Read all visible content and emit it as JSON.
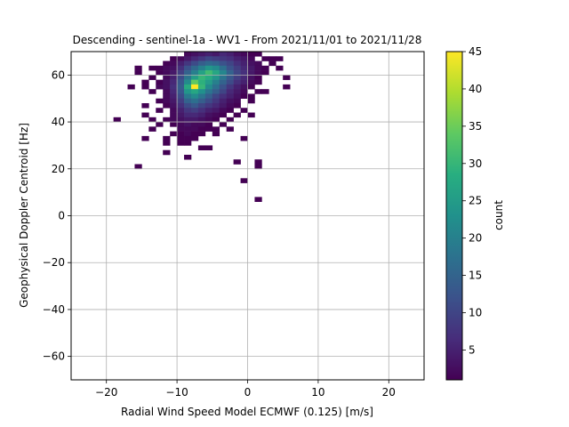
{
  "chart_data": {
    "type": "heatmap",
    "title": "Descending - sentinel-1a - WV1 - From 2021/11/01 to 2021/11/28",
    "xlabel": "Radial Wind Speed Model ECMWF (0.125) [m/s]",
    "ylabel": "Geophysical Doppler Centroid [Hz]",
    "xlim": [
      -25,
      25
    ],
    "ylim": [
      -70,
      70
    ],
    "xticks": [
      -20,
      -10,
      0,
      10,
      20
    ],
    "yticks": [
      -60,
      -40,
      -20,
      0,
      20,
      40,
      60
    ],
    "grid": true,
    "bin_size": [
      1,
      2
    ],
    "colorbar": {
      "label": "count",
      "min": 1,
      "max": 45,
      "ticks": [
        5,
        10,
        15,
        20,
        25,
        30,
        35,
        40,
        45
      ],
      "colormap": "viridis"
    },
    "bins": [
      {
        "x": -8.5,
        "y": 69,
        "count": 2
      },
      {
        "x": -7.5,
        "y": 69,
        "count": 3
      },
      {
        "x": -6.5,
        "y": 69,
        "count": 4
      },
      {
        "x": -5.5,
        "y": 69,
        "count": 5
      },
      {
        "x": -4.5,
        "y": 69,
        "count": 4
      },
      {
        "x": -3.5,
        "y": 69,
        "count": 6
      },
      {
        "x": -2.5,
        "y": 69,
        "count": 5
      },
      {
        "x": -1.5,
        "y": 69,
        "count": 3
      },
      {
        "x": -0.5,
        "y": 69,
        "count": 2
      },
      {
        "x": 0.5,
        "y": 69,
        "count": 1
      },
      {
        "x": 1.5,
        "y": 69,
        "count": 1
      },
      {
        "x": -10.5,
        "y": 67,
        "count": 1
      },
      {
        "x": -9.5,
        "y": 67,
        "count": 2
      },
      {
        "x": -8.5,
        "y": 67,
        "count": 4
      },
      {
        "x": -7.5,
        "y": 67,
        "count": 6
      },
      {
        "x": -6.5,
        "y": 67,
        "count": 8
      },
      {
        "x": -5.5,
        "y": 67,
        "count": 10
      },
      {
        "x": -4.5,
        "y": 67,
        "count": 9
      },
      {
        "x": -3.5,
        "y": 67,
        "count": 8
      },
      {
        "x": -2.5,
        "y": 67,
        "count": 7
      },
      {
        "x": -1.5,
        "y": 67,
        "count": 5
      },
      {
        "x": -0.5,
        "y": 67,
        "count": 4
      },
      {
        "x": 0.5,
        "y": 67,
        "count": 2
      },
      {
        "x": 2.5,
        "y": 67,
        "count": 1
      },
      {
        "x": 3.5,
        "y": 67,
        "count": 1
      },
      {
        "x": 4.5,
        "y": 67,
        "count": 1
      },
      {
        "x": -11.5,
        "y": 65,
        "count": 1
      },
      {
        "x": -10.5,
        "y": 65,
        "count": 2
      },
      {
        "x": -9.5,
        "y": 65,
        "count": 5
      },
      {
        "x": -8.5,
        "y": 65,
        "count": 8
      },
      {
        "x": -7.5,
        "y": 65,
        "count": 11
      },
      {
        "x": -6.5,
        "y": 65,
        "count": 14
      },
      {
        "x": -5.5,
        "y": 65,
        "count": 16
      },
      {
        "x": -4.5,
        "y": 65,
        "count": 15
      },
      {
        "x": -3.5,
        "y": 65,
        "count": 12
      },
      {
        "x": -2.5,
        "y": 65,
        "count": 10
      },
      {
        "x": -1.5,
        "y": 65,
        "count": 7
      },
      {
        "x": -0.5,
        "y": 65,
        "count": 5
      },
      {
        "x": 0.5,
        "y": 65,
        "count": 3
      },
      {
        "x": 1.5,
        "y": 65,
        "count": 2
      },
      {
        "x": 3.5,
        "y": 65,
        "count": 1
      },
      {
        "x": -15.5,
        "y": 63,
        "count": 1
      },
      {
        "x": -13.5,
        "y": 63,
        "count": 1
      },
      {
        "x": -12.5,
        "y": 63,
        "count": 1
      },
      {
        "x": -11.5,
        "y": 63,
        "count": 2
      },
      {
        "x": -10.5,
        "y": 63,
        "count": 3
      },
      {
        "x": -9.5,
        "y": 63,
        "count": 7
      },
      {
        "x": -8.5,
        "y": 63,
        "count": 12
      },
      {
        "x": -7.5,
        "y": 63,
        "count": 16
      },
      {
        "x": -6.5,
        "y": 63,
        "count": 20
      },
      {
        "x": -5.5,
        "y": 63,
        "count": 24
      },
      {
        "x": -4.5,
        "y": 63,
        "count": 22
      },
      {
        "x": -3.5,
        "y": 63,
        "count": 17
      },
      {
        "x": -2.5,
        "y": 63,
        "count": 12
      },
      {
        "x": -1.5,
        "y": 63,
        "count": 9
      },
      {
        "x": -0.5,
        "y": 63,
        "count": 6
      },
      {
        "x": 0.5,
        "y": 63,
        "count": 4
      },
      {
        "x": 1.5,
        "y": 63,
        "count": 2
      },
      {
        "x": 2.5,
        "y": 63,
        "count": 1
      },
      {
        "x": 4.5,
        "y": 63,
        "count": 1
      },
      {
        "x": -15.5,
        "y": 61,
        "count": 1
      },
      {
        "x": -12.5,
        "y": 61,
        "count": 1
      },
      {
        "x": -11.5,
        "y": 61,
        "count": 2
      },
      {
        "x": -10.5,
        "y": 61,
        "count": 4
      },
      {
        "x": -9.5,
        "y": 61,
        "count": 9
      },
      {
        "x": -8.5,
        "y": 61,
        "count": 15
      },
      {
        "x": -7.5,
        "y": 61,
        "count": 20
      },
      {
        "x": -6.5,
        "y": 61,
        "count": 26
      },
      {
        "x": -5.5,
        "y": 61,
        "count": 31
      },
      {
        "x": -4.5,
        "y": 61,
        "count": 27
      },
      {
        "x": -3.5,
        "y": 61,
        "count": 21
      },
      {
        "x": -2.5,
        "y": 61,
        "count": 15
      },
      {
        "x": -1.5,
        "y": 61,
        "count": 10
      },
      {
        "x": -0.5,
        "y": 61,
        "count": 7
      },
      {
        "x": 0.5,
        "y": 61,
        "count": 4
      },
      {
        "x": 1.5,
        "y": 61,
        "count": 2
      },
      {
        "x": 2.5,
        "y": 61,
        "count": 1
      },
      {
        "x": -13.5,
        "y": 59,
        "count": 1
      },
      {
        "x": -11.5,
        "y": 59,
        "count": 2
      },
      {
        "x": -10.5,
        "y": 59,
        "count": 5
      },
      {
        "x": -9.5,
        "y": 59,
        "count": 11
      },
      {
        "x": -8.5,
        "y": 59,
        "count": 18
      },
      {
        "x": -7.5,
        "y": 59,
        "count": 25
      },
      {
        "x": -6.5,
        "y": 59,
        "count": 30
      },
      {
        "x": -5.5,
        "y": 59,
        "count": 28
      },
      {
        "x": -4.5,
        "y": 59,
        "count": 24
      },
      {
        "x": -3.5,
        "y": 59,
        "count": 18
      },
      {
        "x": -2.5,
        "y": 59,
        "count": 13
      },
      {
        "x": -1.5,
        "y": 59,
        "count": 9
      },
      {
        "x": -0.5,
        "y": 59,
        "count": 6
      },
      {
        "x": 0.5,
        "y": 59,
        "count": 3
      },
      {
        "x": 1.5,
        "y": 59,
        "count": 1
      },
      {
        "x": 5.5,
        "y": 59,
        "count": 1
      },
      {
        "x": -14.5,
        "y": 57,
        "count": 1
      },
      {
        "x": -12.5,
        "y": 57,
        "count": 1
      },
      {
        "x": -11.5,
        "y": 57,
        "count": 3
      },
      {
        "x": -10.5,
        "y": 57,
        "count": 6
      },
      {
        "x": -9.5,
        "y": 57,
        "count": 13
      },
      {
        "x": -8.5,
        "y": 57,
        "count": 22
      },
      {
        "x": -7.5,
        "y": 57,
        "count": 34
      },
      {
        "x": -6.5,
        "y": 57,
        "count": 29
      },
      {
        "x": -5.5,
        "y": 57,
        "count": 25
      },
      {
        "x": -4.5,
        "y": 57,
        "count": 20
      },
      {
        "x": -3.5,
        "y": 57,
        "count": 15
      },
      {
        "x": -2.5,
        "y": 57,
        "count": 11
      },
      {
        "x": -1.5,
        "y": 57,
        "count": 7
      },
      {
        "x": -0.5,
        "y": 57,
        "count": 5
      },
      {
        "x": 0.5,
        "y": 57,
        "count": 2
      },
      {
        "x": 1.5,
        "y": 57,
        "count": 1
      },
      {
        "x": -16.5,
        "y": 55,
        "count": 1
      },
      {
        "x": -14.5,
        "y": 55,
        "count": 1
      },
      {
        "x": -12.5,
        "y": 55,
        "count": 2
      },
      {
        "x": -11.5,
        "y": 55,
        "count": 3
      },
      {
        "x": -10.5,
        "y": 55,
        "count": 7
      },
      {
        "x": -9.5,
        "y": 55,
        "count": 14
      },
      {
        "x": -8.5,
        "y": 55,
        "count": 28
      },
      {
        "x": -7.5,
        "y": 55,
        "count": 45
      },
      {
        "x": -6.5,
        "y": 55,
        "count": 30
      },
      {
        "x": -5.5,
        "y": 55,
        "count": 22
      },
      {
        "x": -4.5,
        "y": 55,
        "count": 17
      },
      {
        "x": -3.5,
        "y": 55,
        "count": 12
      },
      {
        "x": -2.5,
        "y": 55,
        "count": 8
      },
      {
        "x": -1.5,
        "y": 55,
        "count": 5
      },
      {
        "x": -0.5,
        "y": 55,
        "count": 3
      },
      {
        "x": 0.5,
        "y": 55,
        "count": 1
      },
      {
        "x": 5.5,
        "y": 55,
        "count": 1
      },
      {
        "x": -13.5,
        "y": 53,
        "count": 1
      },
      {
        "x": -11.5,
        "y": 53,
        "count": 2
      },
      {
        "x": -10.5,
        "y": 53,
        "count": 6
      },
      {
        "x": -9.5,
        "y": 53,
        "count": 13
      },
      {
        "x": -8.5,
        "y": 53,
        "count": 24
      },
      {
        "x": -7.5,
        "y": 53,
        "count": 27
      },
      {
        "x": -6.5,
        "y": 53,
        "count": 23
      },
      {
        "x": -5.5,
        "y": 53,
        "count": 18
      },
      {
        "x": -4.5,
        "y": 53,
        "count": 14
      },
      {
        "x": -3.5,
        "y": 53,
        "count": 10
      },
      {
        "x": -2.5,
        "y": 53,
        "count": 6
      },
      {
        "x": -1.5,
        "y": 53,
        "count": 4
      },
      {
        "x": -0.5,
        "y": 53,
        "count": 2
      },
      {
        "x": 1.5,
        "y": 53,
        "count": 1
      },
      {
        "x": 2.5,
        "y": 53,
        "count": 1
      },
      {
        "x": -11.5,
        "y": 51,
        "count": 2
      },
      {
        "x": -10.5,
        "y": 51,
        "count": 5
      },
      {
        "x": -9.5,
        "y": 51,
        "count": 11
      },
      {
        "x": -8.5,
        "y": 51,
        "count": 19
      },
      {
        "x": -7.5,
        "y": 51,
        "count": 22
      },
      {
        "x": -6.5,
        "y": 51,
        "count": 18
      },
      {
        "x": -5.5,
        "y": 51,
        "count": 14
      },
      {
        "x": -4.5,
        "y": 51,
        "count": 10
      },
      {
        "x": -3.5,
        "y": 51,
        "count": 7
      },
      {
        "x": -2.5,
        "y": 51,
        "count": 5
      },
      {
        "x": -1.5,
        "y": 51,
        "count": 3
      },
      {
        "x": -0.5,
        "y": 51,
        "count": 1
      },
      {
        "x": 0.5,
        "y": 51,
        "count": 1
      },
      {
        "x": -12.5,
        "y": 49,
        "count": 1
      },
      {
        "x": -11.5,
        "y": 49,
        "count": 2
      },
      {
        "x": -10.5,
        "y": 49,
        "count": 4
      },
      {
        "x": -9.5,
        "y": 49,
        "count": 9
      },
      {
        "x": -8.5,
        "y": 49,
        "count": 15
      },
      {
        "x": -7.5,
        "y": 49,
        "count": 17
      },
      {
        "x": -6.5,
        "y": 49,
        "count": 14
      },
      {
        "x": -5.5,
        "y": 49,
        "count": 11
      },
      {
        "x": -4.5,
        "y": 49,
        "count": 8
      },
      {
        "x": -3.5,
        "y": 49,
        "count": 5
      },
      {
        "x": -2.5,
        "y": 49,
        "count": 3
      },
      {
        "x": -1.5,
        "y": 49,
        "count": 2
      },
      {
        "x": 0.5,
        "y": 49,
        "count": 1
      },
      {
        "x": -14.5,
        "y": 47,
        "count": 1
      },
      {
        "x": -11.5,
        "y": 47,
        "count": 1
      },
      {
        "x": -10.5,
        "y": 47,
        "count": 3
      },
      {
        "x": -9.5,
        "y": 47,
        "count": 7
      },
      {
        "x": -8.5,
        "y": 47,
        "count": 11
      },
      {
        "x": -7.5,
        "y": 47,
        "count": 13
      },
      {
        "x": -6.5,
        "y": 47,
        "count": 10
      },
      {
        "x": -5.5,
        "y": 47,
        "count": 8
      },
      {
        "x": -4.5,
        "y": 47,
        "count": 6
      },
      {
        "x": -3.5,
        "y": 47,
        "count": 4
      },
      {
        "x": -2.5,
        "y": 47,
        "count": 2
      },
      {
        "x": -1.5,
        "y": 47,
        "count": 1
      },
      {
        "x": -12.5,
        "y": 45,
        "count": 1
      },
      {
        "x": -10.5,
        "y": 45,
        "count": 2
      },
      {
        "x": -9.5,
        "y": 45,
        "count": 5
      },
      {
        "x": -8.5,
        "y": 45,
        "count": 8
      },
      {
        "x": -7.5,
        "y": 45,
        "count": 9
      },
      {
        "x": -6.5,
        "y": 45,
        "count": 7
      },
      {
        "x": -5.5,
        "y": 45,
        "count": 5
      },
      {
        "x": -4.5,
        "y": 45,
        "count": 4
      },
      {
        "x": -3.5,
        "y": 45,
        "count": 2
      },
      {
        "x": -2.5,
        "y": 45,
        "count": 1
      },
      {
        "x": -0.5,
        "y": 45,
        "count": 1
      },
      {
        "x": -14.5,
        "y": 43,
        "count": 1
      },
      {
        "x": -10.5,
        "y": 43,
        "count": 2
      },
      {
        "x": -9.5,
        "y": 43,
        "count": 4
      },
      {
        "x": -8.5,
        "y": 43,
        "count": 6
      },
      {
        "x": -7.5,
        "y": 43,
        "count": 6
      },
      {
        "x": -6.5,
        "y": 43,
        "count": 5
      },
      {
        "x": -5.5,
        "y": 43,
        "count": 3
      },
      {
        "x": -4.5,
        "y": 43,
        "count": 2
      },
      {
        "x": -3.5,
        "y": 43,
        "count": 1
      },
      {
        "x": -1.5,
        "y": 43,
        "count": 1
      },
      {
        "x": 0.5,
        "y": 43,
        "count": 1
      },
      {
        "x": -18.5,
        "y": 41,
        "count": 1
      },
      {
        "x": -13.5,
        "y": 41,
        "count": 1
      },
      {
        "x": -11.5,
        "y": 41,
        "count": 1
      },
      {
        "x": -10.5,
        "y": 41,
        "count": 2
      },
      {
        "x": -9.5,
        "y": 41,
        "count": 3
      },
      {
        "x": -8.5,
        "y": 41,
        "count": 4
      },
      {
        "x": -7.5,
        "y": 41,
        "count": 4
      },
      {
        "x": -6.5,
        "y": 41,
        "count": 3
      },
      {
        "x": -5.5,
        "y": 41,
        "count": 2
      },
      {
        "x": -4.5,
        "y": 41,
        "count": 1
      },
      {
        "x": -2.5,
        "y": 41,
        "count": 1
      },
      {
        "x": -12.5,
        "y": 39,
        "count": 1
      },
      {
        "x": -10.5,
        "y": 39,
        "count": 1
      },
      {
        "x": -9.5,
        "y": 39,
        "count": 2
      },
      {
        "x": -8.5,
        "y": 39,
        "count": 3
      },
      {
        "x": -7.5,
        "y": 39,
        "count": 2
      },
      {
        "x": -6.5,
        "y": 39,
        "count": 2
      },
      {
        "x": -5.5,
        "y": 39,
        "count": 1
      },
      {
        "x": -3.5,
        "y": 39,
        "count": 1
      },
      {
        "x": -13.5,
        "y": 37,
        "count": 1
      },
      {
        "x": -9.5,
        "y": 37,
        "count": 2
      },
      {
        "x": -8.5,
        "y": 37,
        "count": 2
      },
      {
        "x": -7.5,
        "y": 37,
        "count": 2
      },
      {
        "x": -6.5,
        "y": 37,
        "count": 1
      },
      {
        "x": -5.5,
        "y": 37,
        "count": 1
      },
      {
        "x": -4.5,
        "y": 37,
        "count": 1
      },
      {
        "x": -2.5,
        "y": 37,
        "count": 1
      },
      {
        "x": -10.5,
        "y": 35,
        "count": 1
      },
      {
        "x": -9.5,
        "y": 35,
        "count": 1
      },
      {
        "x": -8.5,
        "y": 35,
        "count": 2
      },
      {
        "x": -7.5,
        "y": 35,
        "count": 1
      },
      {
        "x": -6.5,
        "y": 35,
        "count": 1
      },
      {
        "x": -4.5,
        "y": 35,
        "count": 1
      },
      {
        "x": -14.5,
        "y": 33,
        "count": 1
      },
      {
        "x": -11.5,
        "y": 33,
        "count": 1
      },
      {
        "x": -9.5,
        "y": 33,
        "count": 1
      },
      {
        "x": -8.5,
        "y": 33,
        "count": 1
      },
      {
        "x": -7.5,
        "y": 33,
        "count": 1
      },
      {
        "x": -0.5,
        "y": 33,
        "count": 1
      },
      {
        "x": -11.5,
        "y": 31,
        "count": 1
      },
      {
        "x": -9.5,
        "y": 31,
        "count": 1
      },
      {
        "x": -8.5,
        "y": 31,
        "count": 1
      },
      {
        "x": -11.5,
        "y": 27,
        "count": 1
      },
      {
        "x": -6.5,
        "y": 29,
        "count": 1
      },
      {
        "x": -5.5,
        "y": 29,
        "count": 1
      },
      {
        "x": -8.5,
        "y": 25,
        "count": 1
      },
      {
        "x": -1.5,
        "y": 23,
        "count": 1
      },
      {
        "x": 1.5,
        "y": 23,
        "count": 1
      },
      {
        "x": 1.5,
        "y": 21,
        "count": 1
      },
      {
        "x": -15.5,
        "y": 21,
        "count": 1
      },
      {
        "x": -0.5,
        "y": 15,
        "count": 1
      },
      {
        "x": 1.5,
        "y": 7,
        "count": 1
      }
    ]
  }
}
